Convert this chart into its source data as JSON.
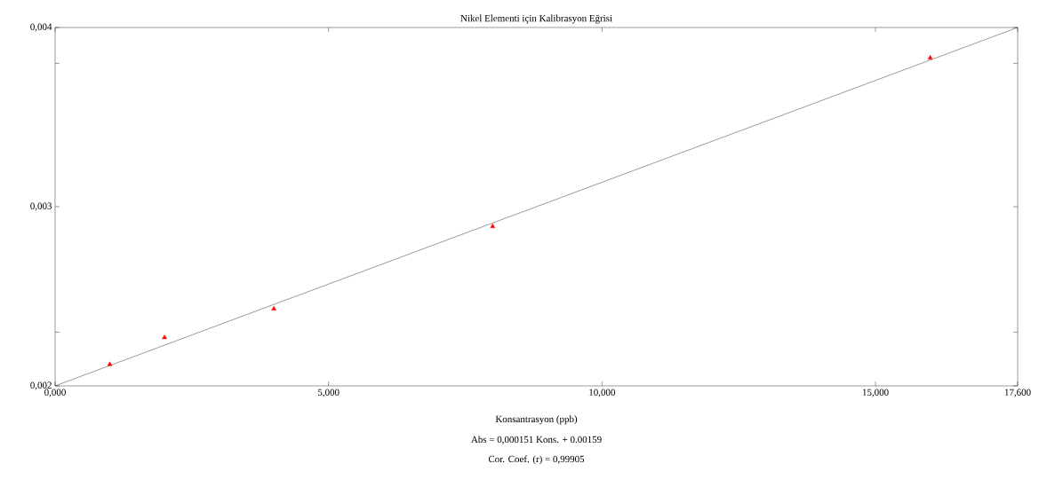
{
  "chart_data": {
    "type": "scatter",
    "title": "Nikel Elementi için Kalibrasyon Eğrisi",
    "xlabel": "Konsantrasyon (ppb)",
    "annotations": [
      "Abs = 0,000151 Kons. + 0.00159",
      "Cor. Coef. (r) = 0,99905"
    ],
    "xlim": [
      0,
      17.6
    ],
    "ylim": [
      0.002,
      0.004
    ],
    "xticks": [
      {
        "value": 0,
        "label": "0,000"
      },
      {
        "value": 5,
        "label": "5,000"
      },
      {
        "value": 10,
        "label": "10,000"
      },
      {
        "value": 15,
        "label": "15,000"
      },
      {
        "value": 17.6,
        "label": "17,600"
      }
    ],
    "yticks": [
      {
        "value": 0.002,
        "label": "0,002"
      },
      {
        "value": 0.0023,
        "label": null
      },
      {
        "value": 0.003,
        "label": "0,003"
      },
      {
        "value": 0.0038,
        "label": null
      },
      {
        "value": 0.004,
        "label": "0,004"
      }
    ],
    "series": [
      {
        "color": "#ff0000",
        "marker": "triangle",
        "x": [
          1,
          2,
          4,
          8,
          16
        ],
        "values": [
          0.00212,
          0.00227,
          0.00243,
          0.00289,
          0.00383
        ]
      },
      {
        "type": "line",
        "color": "#000000",
        "marker": "none",
        "line_style": "solid",
        "x": [
          0,
          17.6
        ],
        "values": [
          0.002,
          0.004
        ]
      }
    ]
  }
}
